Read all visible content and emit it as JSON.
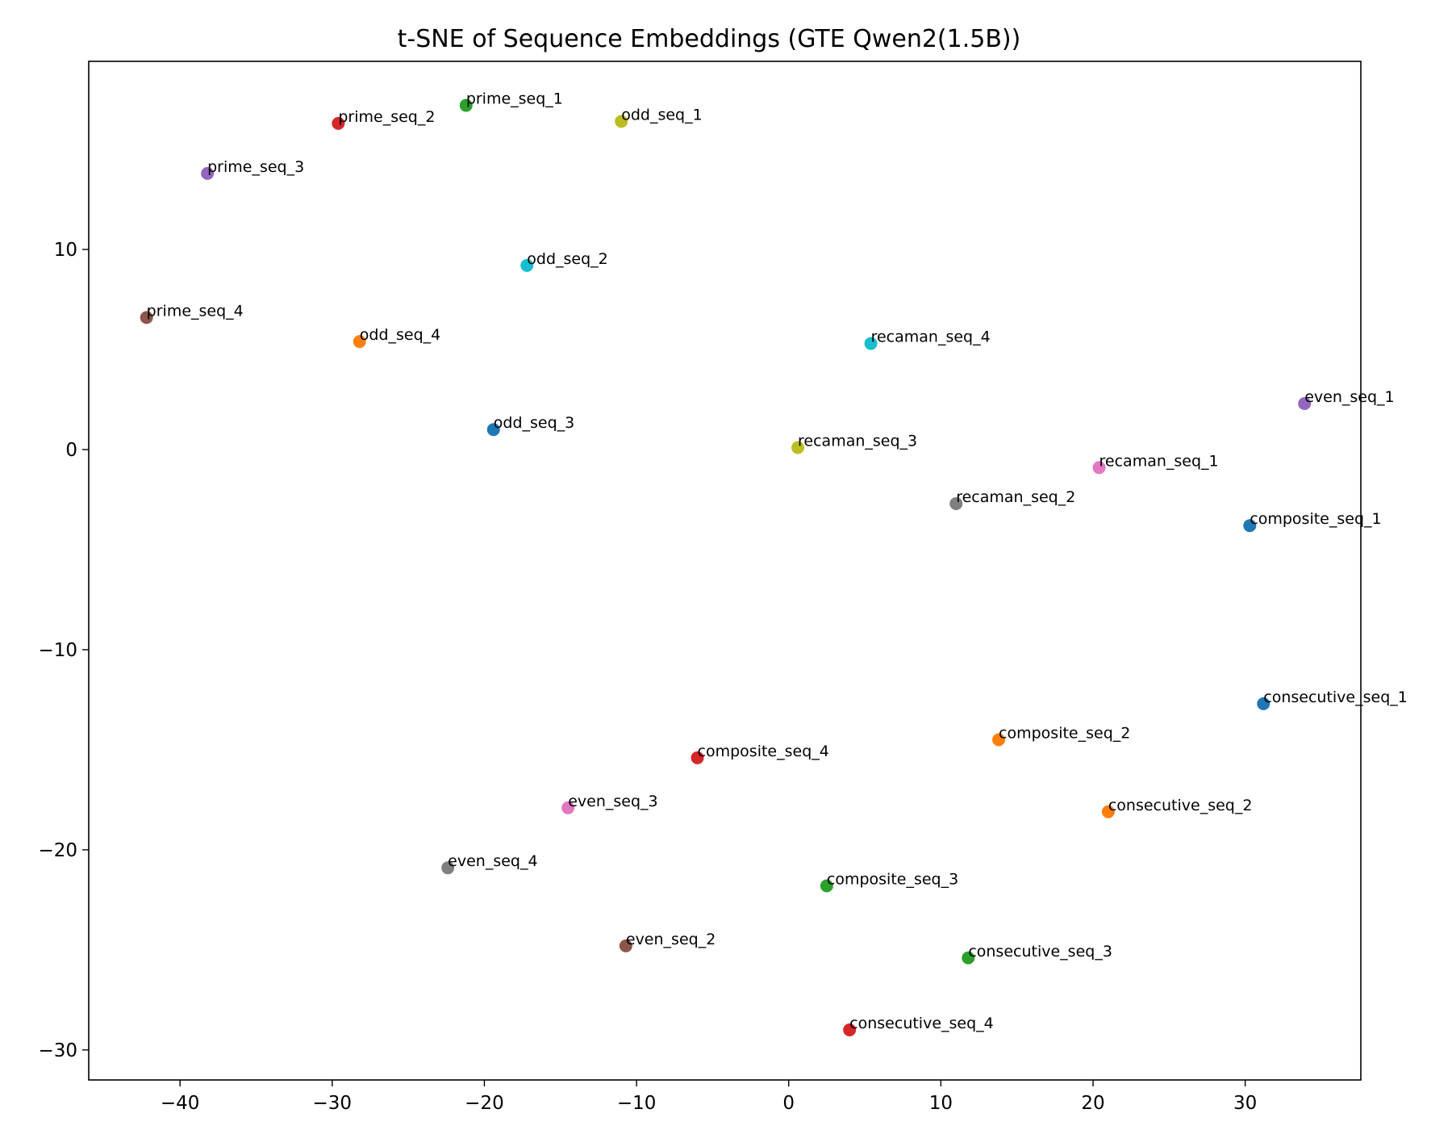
{
  "chart_data": {
    "type": "scatter",
    "title": "t-SNE of Sequence Embeddings (GTE Qwen2(1.5B))",
    "xlabel": "",
    "ylabel": "",
    "xlim": [
      -46,
      37.6
    ],
    "ylim": [
      -31.5,
      19.4
    ],
    "xticks": [
      -40,
      -30,
      -20,
      -10,
      0,
      10,
      20,
      30
    ],
    "yticks": [
      10,
      0,
      -10,
      -20,
      -30
    ],
    "xtick_labels": [
      "−40",
      "−30",
      "−20",
      "−10",
      "0",
      "10",
      "20",
      "30"
    ],
    "ytick_labels": [
      "10",
      "0",
      "−10",
      "−20",
      "−30"
    ],
    "grid": false,
    "legend": false,
    "points": [
      {
        "label": "prime_seq_1",
        "x": -21.2,
        "y": 17.2,
        "color": "#2ca02c"
      },
      {
        "label": "prime_seq_2",
        "x": -29.6,
        "y": 16.3,
        "color": "#d62728"
      },
      {
        "label": "odd_seq_1",
        "x": -11.0,
        "y": 16.4,
        "color": "#bcbd22"
      },
      {
        "label": "prime_seq_3",
        "x": -38.2,
        "y": 13.8,
        "color": "#9467bd"
      },
      {
        "label": "odd_seq_2",
        "x": -17.2,
        "y": 9.2,
        "color": "#17becf"
      },
      {
        "label": "prime_seq_4",
        "x": -42.2,
        "y": 6.6,
        "color": "#8c564b"
      },
      {
        "label": "odd_seq_4",
        "x": -28.2,
        "y": 5.4,
        "color": "#ff7f0e"
      },
      {
        "label": "recaman_seq_4",
        "x": 5.4,
        "y": 5.3,
        "color": "#17becf"
      },
      {
        "label": "even_seq_1",
        "x": 33.9,
        "y": 2.3,
        "color": "#9467bd"
      },
      {
        "label": "odd_seq_3",
        "x": -19.4,
        "y": 1.0,
        "color": "#1f77b4"
      },
      {
        "label": "recaman_seq_3",
        "x": 0.6,
        "y": 0.1,
        "color": "#bcbd22"
      },
      {
        "label": "recaman_seq_1",
        "x": 20.4,
        "y": -0.9,
        "color": "#e377c2"
      },
      {
        "label": "recaman_seq_2",
        "x": 11.0,
        "y": -2.7,
        "color": "#7f7f7f"
      },
      {
        "label": "composite_seq_1",
        "x": 30.3,
        "y": -3.8,
        "color": "#1f77b4"
      },
      {
        "label": "consecutive_seq_1",
        "x": 31.2,
        "y": -12.7,
        "color": "#1f77b4"
      },
      {
        "label": "composite_seq_2",
        "x": 13.8,
        "y": -14.5,
        "color": "#ff7f0e"
      },
      {
        "label": "composite_seq_4",
        "x": -6.0,
        "y": -15.4,
        "color": "#d62728"
      },
      {
        "label": "even_seq_3",
        "x": -14.5,
        "y": -17.9,
        "color": "#e377c2"
      },
      {
        "label": "consecutive_seq_2",
        "x": 21.0,
        "y": -18.1,
        "color": "#ff7f0e"
      },
      {
        "label": "even_seq_4",
        "x": -22.4,
        "y": -20.9,
        "color": "#7f7f7f"
      },
      {
        "label": "composite_seq_3",
        "x": 2.5,
        "y": -21.8,
        "color": "#2ca02c"
      },
      {
        "label": "even_seq_2",
        "x": -10.7,
        "y": -24.8,
        "color": "#8c564b"
      },
      {
        "label": "consecutive_seq_3",
        "x": 11.8,
        "y": -25.4,
        "color": "#2ca02c"
      },
      {
        "label": "consecutive_seq_4",
        "x": 4.0,
        "y": -29.0,
        "color": "#d62728"
      }
    ]
  }
}
